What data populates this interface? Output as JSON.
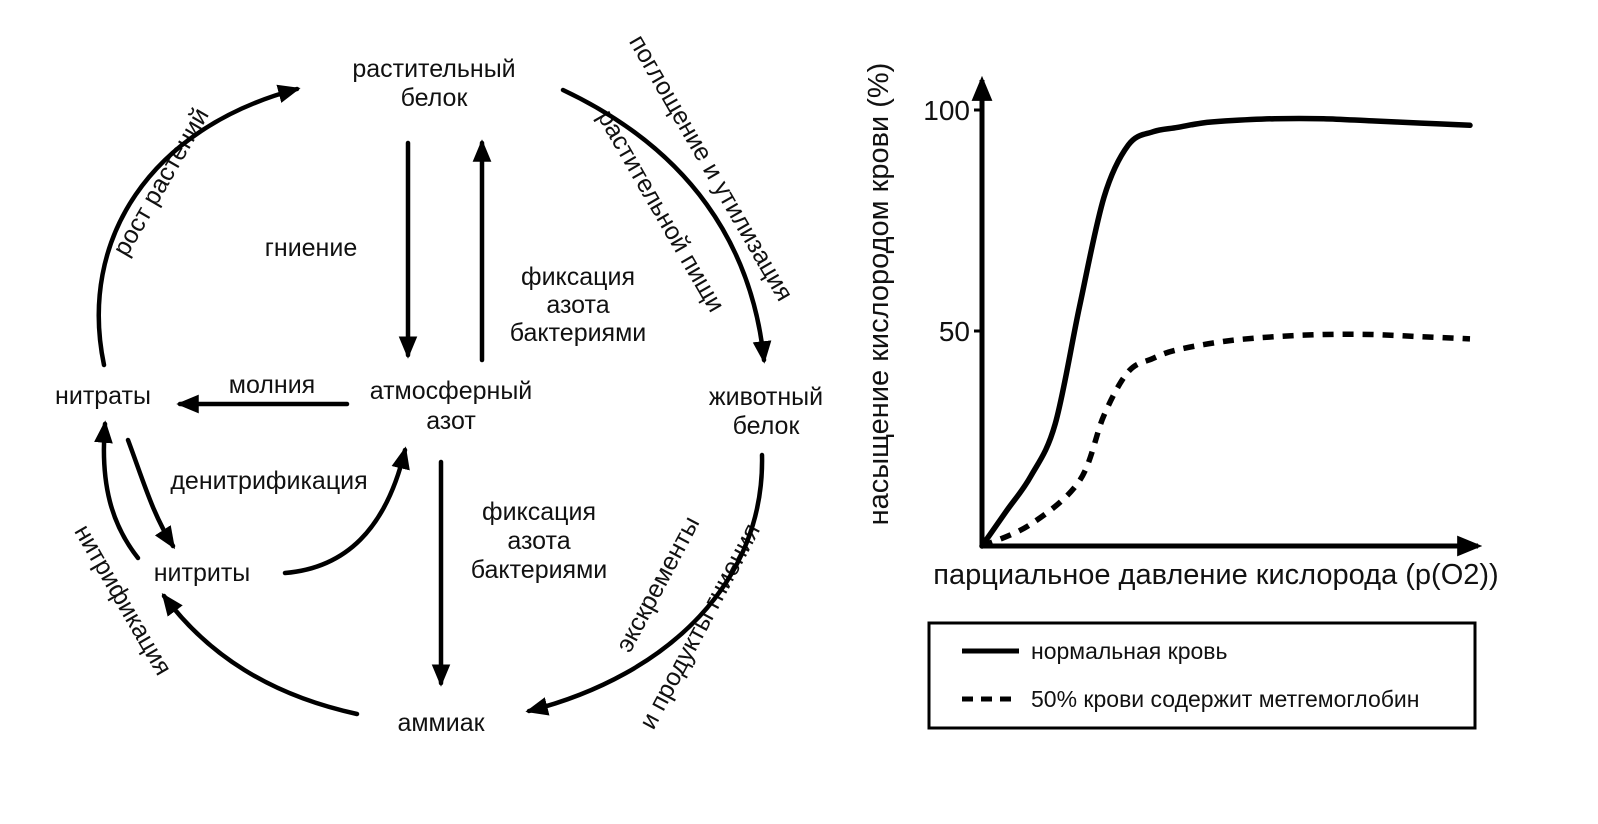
{
  "cycle": {
    "nodes": {
      "plant_protein_1": "растительный",
      "plant_protein_2": "белок",
      "animal_protein_1": "животный",
      "animal_protein_2": "белок",
      "atmospheric_1": "атмосферный",
      "atmospheric_2": "азот",
      "nitrates": "нитраты",
      "nitrites": "нитриты",
      "ammonia": "аммиак"
    },
    "processes": {
      "plant_growth": "рост растений",
      "consumption_1": "поглощение и утилизация",
      "consumption_2": "растительной пищи",
      "decay": "гниение",
      "fixation_top_1": "фиксация",
      "fixation_top_2": "азота",
      "fixation_top_3": "бактериями",
      "lightning": "молния",
      "denitrification": "денитрификация",
      "fixation_bottom_1": "фиксация",
      "fixation_bottom_2": "азота",
      "fixation_bottom_3": "бактериями",
      "excrement_1": "экскременты",
      "excrement_2": "и продукты гниения",
      "nitrification": "нитрификация"
    }
  },
  "chart_data": {
    "type": "line",
    "ylabel": "насыщение кислородом крови (%)",
    "xlabel": "парциальное давление кислорода (p(O2))",
    "yticks": [
      "100",
      "50"
    ],
    "ylim": [
      0,
      100
    ],
    "xlim": [
      0,
      10
    ],
    "series": [
      {
        "name": "нормальная кровь",
        "style": "solid",
        "x": [
          0,
          0.5,
          1.0,
          1.5,
          2.0,
          2.5,
          3.0,
          3.5,
          4.0,
          4.5,
          5.0,
          6.0,
          7.0,
          8.0,
          9.0,
          10.0
        ],
        "y": [
          0,
          8,
          16,
          28,
          55,
          80,
          92,
          95,
          96,
          97,
          97.5,
          98,
          98,
          97.5,
          97,
          96.5
        ]
      },
      {
        "name": "50% крови содержит метгемоглобин",
        "style": "dashed",
        "x": [
          0,
          1.0,
          2.0,
          2.5,
          3.0,
          3.5,
          4.0,
          5.0,
          6.0,
          7.0,
          8.0,
          9.0,
          10.0
        ],
        "y": [
          0,
          5,
          15,
          30,
          40,
          43,
          45,
          47,
          48,
          48.5,
          48.5,
          48,
          47.5
        ]
      }
    ],
    "legend": {
      "placement": "bottom",
      "entries": [
        "нормальная кровь",
        "50% крови содержит метгемоглобин"
      ]
    }
  }
}
